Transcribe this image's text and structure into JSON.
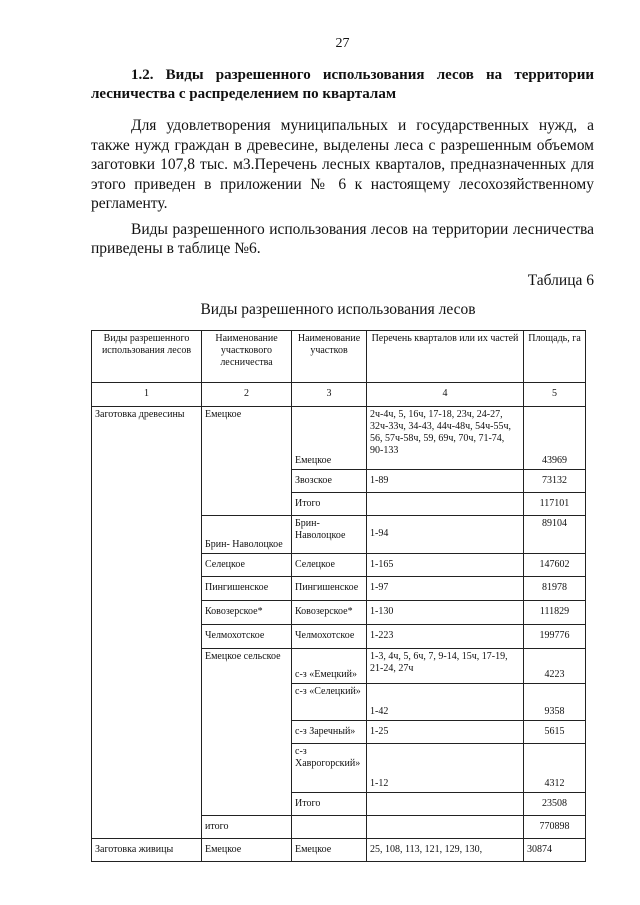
{
  "page_number": "27",
  "heading": "1.2. Виды разрешенного использования лесов на территории лесничества с распределением по кварталам",
  "paragraphs": [
    "Для удовлетворения муниципальных и государственных нужд, а также нужд граждан в древесине, выделены леса с разрешенным объемом заготовки 107,8 тыс. м3.Перечень лесных кварталов, предназначенных для этого приведен в приложении № 6 к настоящему лесохозяйственному регламенту.",
    "Виды разрешенного использования лесов на территории лесничества приведены в таблице №6."
  ],
  "table_number": "Таблица 6",
  "table_title": "Виды разрешенного использования лесов",
  "table": {
    "headers": [
      "Виды разрешенного использования лесов",
      "Наименование участкового лесничества",
      "Наименование участков",
      "Перечень кварталов или их частей",
      "Площадь, га"
    ],
    "column_numbers": [
      "1",
      "2",
      "3",
      "4",
      "5"
    ],
    "rows": [
      [
        "Заготовка древесины",
        "Емецкое",
        "Емецкое",
        "2ч-4ч, 5, 16ч, 17-18, 23ч, 24-27, 32ч-33ч, 34-43, 44ч-48ч, 54ч-55ч, 56, 57ч-58ч, 59, 69ч, 70ч, 71-74, 90-133",
        "43969"
      ],
      [
        "",
        "",
        "Звозское",
        "1-89",
        "73132"
      ],
      [
        "",
        "",
        "Итого",
        "",
        "117101"
      ],
      [
        "",
        "Брин- Наволоцкое",
        "Брин-Наволоцкое",
        "1-94",
        "89104"
      ],
      [
        "",
        "Селецкое",
        "Селецкое",
        "1-165",
        "147602"
      ],
      [
        "",
        "Пингишенское",
        "Пингишенское",
        "1-97",
        "81978"
      ],
      [
        "",
        "Ковозерское*",
        "Ковозерское*",
        "1-130",
        "111829"
      ],
      [
        "",
        "Челмохотское",
        "Челмохотское",
        "1-223",
        "199776"
      ],
      [
        "",
        "Емецкое сельское",
        "с-з «Емецкий»",
        "1-3, 4ч, 5, 6ч, 7, 9-14, 15ч, 17-19, 21-24, 27ч",
        "4223"
      ],
      [
        "",
        "",
        "с-з «Селецкий»",
        "1-42",
        "9358"
      ],
      [
        "",
        "",
        "с-з Заречный»",
        "1-25",
        "5615"
      ],
      [
        "",
        "",
        "с-з Хаврогорский»",
        "1-12",
        "4312"
      ],
      [
        "",
        "",
        "Итого",
        "",
        "23508"
      ],
      [
        "",
        "итого",
        "",
        "",
        "770898"
      ],
      [
        "Заготовка живицы",
        "Емецкое",
        "Емецкое",
        "25, 108, 113, 121, 129, 130,",
        "30874"
      ]
    ]
  }
}
